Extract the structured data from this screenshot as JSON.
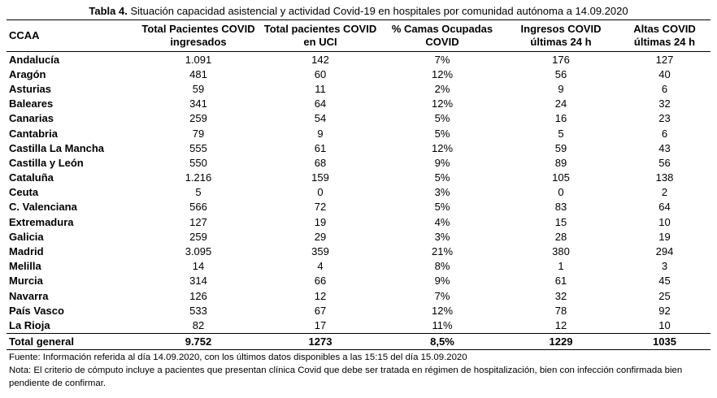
{
  "caption": {
    "label": "Tabla 4.",
    "text": "Situación capacidad asistencial y actividad Covid-19 en hospitales por comunidad autónoma a 14.09.2020"
  },
  "table": {
    "headers": [
      [
        "CCAA",
        ""
      ],
      [
        "Total Pacientes COVID",
        "ingresados"
      ],
      [
        "Total pacientes COVID",
        "en UCI"
      ],
      [
        "% Camas Ocupadas",
        "COVID"
      ],
      [
        "Ingresos COVID",
        "últimas 24 h"
      ],
      [
        "Altas COVID",
        "últimas 24 h"
      ]
    ],
    "rows": [
      [
        "Andalucía",
        "1.091",
        "142",
        "7%",
        "176",
        "127"
      ],
      [
        "Aragón",
        "481",
        "60",
        "12%",
        "56",
        "40"
      ],
      [
        "Asturias",
        "59",
        "11",
        "2%",
        "9",
        "6"
      ],
      [
        "Baleares",
        "341",
        "64",
        "12%",
        "24",
        "32"
      ],
      [
        "Canarias",
        "259",
        "54",
        "5%",
        "16",
        "23"
      ],
      [
        "Cantabria",
        "79",
        "9",
        "5%",
        "5",
        "6"
      ],
      [
        "Castilla La Mancha",
        "555",
        "61",
        "12%",
        "59",
        "43"
      ],
      [
        "Castilla y León",
        "550",
        "68",
        "9%",
        "89",
        "56"
      ],
      [
        "Cataluña",
        "1.216",
        "159",
        "5%",
        "105",
        "138"
      ],
      [
        "Ceuta",
        "5",
        "0",
        "3%",
        "0",
        "2"
      ],
      [
        "C. Valenciana",
        "566",
        "72",
        "5%",
        "83",
        "64"
      ],
      [
        "Extremadura",
        "127",
        "19",
        "4%",
        "15",
        "10"
      ],
      [
        "Galicia",
        "259",
        "29",
        "3%",
        "28",
        "19"
      ],
      [
        "Madrid",
        "3.095",
        "359",
        "21%",
        "380",
        "294"
      ],
      [
        "Melilla",
        "14",
        "4",
        "8%",
        "1",
        "3"
      ],
      [
        "Murcia",
        "314",
        "66",
        "9%",
        "61",
        "45"
      ],
      [
        "Navarra",
        "126",
        "12",
        "7%",
        "32",
        "25"
      ],
      [
        "País Vasco",
        "533",
        "67",
        "12%",
        "78",
        "92"
      ],
      [
        "La Rioja",
        "82",
        "17",
        "11%",
        "12",
        "10"
      ]
    ],
    "total": [
      "Total general",
      "9.752",
      "1273",
      "8,5%",
      "1229",
      "1035"
    ]
  },
  "notes": {
    "source": "Fuente: Información  referida al día 14.09.2020, con los últimos datos disponibles a las 15:15 del día 15.09.2020",
    "note": "Nota:  El criterio de cómputo incluye a pacientes que presentan clínica Covid que debe ser tratada en régimen de hospitalización, bien con infección confirmada bien pendiente de confirmar."
  }
}
